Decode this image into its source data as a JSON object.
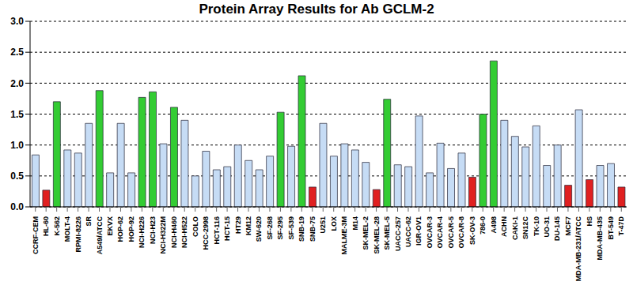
{
  "chart_data": {
    "type": "bar",
    "title": "Protein Array Results for Ab GCLM-2",
    "categories": [
      "CCRF-CEM",
      "HL-60",
      "K-562",
      "MOLT-4",
      "RPMI-8226",
      "SR",
      "A549/ATCC",
      "EKVX",
      "HOP-62",
      "HOP-92",
      "NCI-H226",
      "NCI-H23",
      "NCI-H322M",
      "NCI-H460",
      "NCI-H522",
      "COLO",
      "HCC-2998",
      "HCT-116",
      "HCT-15",
      "HT29",
      "KM12",
      "SW-620",
      "SF-268",
      "SF-295",
      "SF-539",
      "SNB-19",
      "SNB-75",
      "U251",
      "LOX",
      "MALME-3M",
      "M14",
      "SK-MEL-2",
      "SK-MEL-28",
      "SK-MEL-5",
      "UACC-257",
      "UACC-62",
      "IGR-OV1",
      "OVCAR-3",
      "OVCAR-4",
      "OVCAR-5",
      "OVCAR-8",
      "SK-OV-3",
      "786-0",
      "A498",
      "ACHN",
      "CAKI-1",
      "SN12C",
      "TK-10",
      "UO-31",
      "DU-145",
      "MCF7",
      "MDA-MB-231/ATCC",
      "HS",
      "MDA-MB-435",
      "BT-549",
      "T-47D"
    ],
    "values": [
      0.84,
      0.27,
      1.7,
      0.92,
      0.87,
      1.35,
      1.88,
      0.55,
      1.35,
      0.55,
      1.77,
      1.86,
      1.02,
      1.61,
      1.4,
      0.5,
      0.9,
      0.6,
      0.65,
      1.0,
      0.75,
      0.6,
      0.82,
      1.53,
      0.98,
      2.12,
      0.32,
      1.35,
      0.82,
      1.02,
      0.92,
      0.72,
      0.28,
      1.74,
      0.68,
      0.65,
      1.47,
      0.55,
      1.03,
      0.62,
      0.87,
      0.48,
      1.5,
      2.36,
      1.4,
      1.14,
      0.97,
      1.31,
      0.67,
      1.0,
      0.35,
      1.57,
      0.44,
      0.67,
      0.7,
      0.32
    ],
    "colors": [
      "#c6dcf5",
      "#e02020",
      "#33cc33",
      "#c6dcf5",
      "#c6dcf5",
      "#c6dcf5",
      "#33cc33",
      "#c6dcf5",
      "#c6dcf5",
      "#c6dcf5",
      "#33cc33",
      "#33cc33",
      "#c6dcf5",
      "#33cc33",
      "#c6dcf5",
      "#c6dcf5",
      "#c6dcf5",
      "#c6dcf5",
      "#c6dcf5",
      "#c6dcf5",
      "#c6dcf5",
      "#c6dcf5",
      "#c6dcf5",
      "#33cc33",
      "#c6dcf5",
      "#33cc33",
      "#e02020",
      "#c6dcf5",
      "#c6dcf5",
      "#c6dcf5",
      "#c6dcf5",
      "#c6dcf5",
      "#e02020",
      "#33cc33",
      "#c6dcf5",
      "#c6dcf5",
      "#c6dcf5",
      "#c6dcf5",
      "#c6dcf5",
      "#c6dcf5",
      "#c6dcf5",
      "#e02020",
      "#33cc33",
      "#33cc33",
      "#c6dcf5",
      "#c6dcf5",
      "#c6dcf5",
      "#c6dcf5",
      "#c6dcf5",
      "#c6dcf5",
      "#e02020",
      "#c6dcf5",
      "#e02020",
      "#c6dcf5",
      "#c6dcf5",
      "#e02020"
    ],
    "ylim": [
      0,
      3
    ],
    "yticks": [
      {
        "value": 0,
        "label": "0.0"
      },
      {
        "value": 0.5,
        "label": "0.5"
      },
      {
        "value": 1,
        "label": "1.0"
      },
      {
        "value": 1.5,
        "label": "1.5"
      },
      {
        "value": 2,
        "label": "2.0"
      },
      {
        "value": 2.5,
        "label": "2.5"
      },
      {
        "value": 3,
        "label": "3.0"
      }
    ],
    "grid": true
  }
}
